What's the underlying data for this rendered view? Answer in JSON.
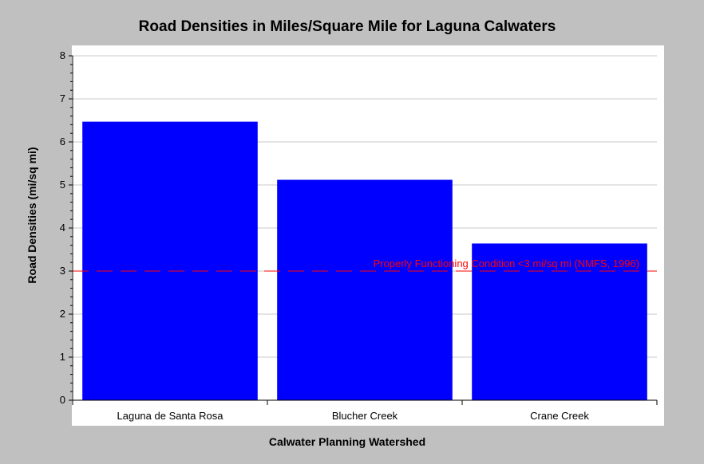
{
  "chart_data": {
    "type": "bar",
    "title": "Road Densities in Miles/Square Mile for Laguna Calwaters",
    "xlabel": "Calwater Planning Watershed",
    "ylabel": "Road Densities (mi/sq mi)",
    "categories": [
      "Laguna de Santa Rosa",
      "Blucher Creek",
      "Crane Creek"
    ],
    "values": [
      6.47,
      5.12,
      3.64
    ],
    "ylim": [
      0,
      8
    ],
    "yticks": [
      0,
      1,
      2,
      3,
      4,
      5,
      6,
      7,
      8
    ],
    "grid": true,
    "bar_color": "#0000ff",
    "reference_line": {
      "value": 3,
      "label": "Properly Functioning Condition <3 mi/sq mi (NMFS, 1996)",
      "color": "#ff0000"
    }
  }
}
